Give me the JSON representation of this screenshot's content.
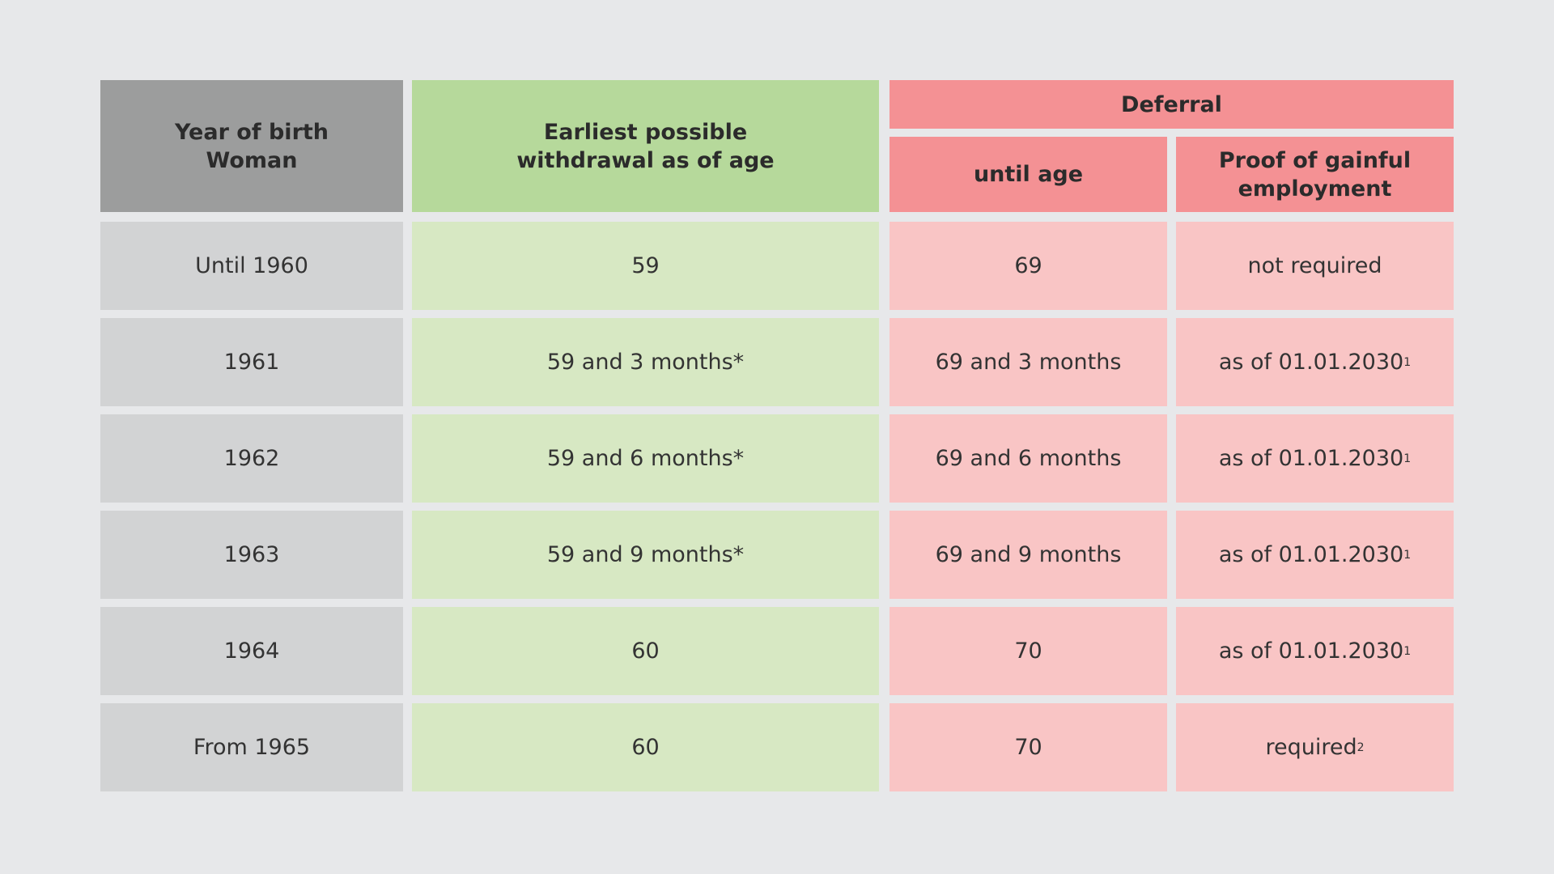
{
  "chart_data": {
    "type": "table",
    "headers": {
      "year_of_birth": "Year of birth\nWoman",
      "earliest": "Earliest possible\nwithdrawal as of age",
      "deferral": "Deferral",
      "until_age": "until age",
      "proof": "Proof of gainful\nemployment"
    },
    "rows": [
      {
        "year": "Until 1960",
        "earliest": "59",
        "until_age": "69",
        "proof": "not required",
        "footnote": ""
      },
      {
        "year": "1961",
        "earliest": "59 and 3 months*",
        "until_age": "69 and 3 months",
        "proof": "as of 01.01.2030",
        "footnote": "1"
      },
      {
        "year": "1962",
        "earliest": "59 and 6 months*",
        "until_age": "69 and 6 months",
        "proof": "as of 01.01.2030",
        "footnote": "1"
      },
      {
        "year": "1963",
        "earliest": "59 and 9 months*",
        "until_age": "69 and 9 months",
        "proof": "as of 01.01.2030",
        "footnote": "1"
      },
      {
        "year": "1964",
        "earliest": "60",
        "until_age": "70",
        "proof": "as of 01.01.2030",
        "footnote": "1"
      },
      {
        "year": "From 1965",
        "earliest": "60",
        "until_age": "70",
        "proof": "required",
        "footnote": "2"
      }
    ]
  },
  "colors": {
    "background": "#e7e8ea",
    "year_header": "#9c9d9d",
    "earliest_header": "#b6d99b",
    "deferral_header": "#f49194",
    "year_cell": "#d2d3d4",
    "earliest_cell": "#d7e8c3",
    "deferral_cell": "#f9c5c5"
  }
}
